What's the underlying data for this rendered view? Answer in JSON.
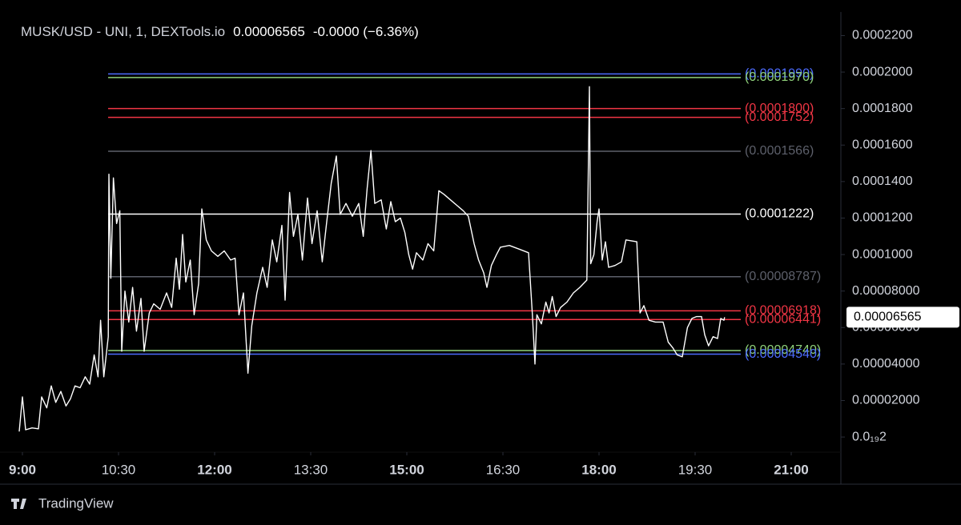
{
  "chart_data": {
    "type": "line",
    "title": "MUSK/USD - UNI, 1, DEXTools.io",
    "last_price": {
      "value": 6.565e-05,
      "label": "0.00006565"
    },
    "change_label": "-0.0000 (−6.36%)",
    "source": "TradingView",
    "xlim": [
      8.65,
      21.775
    ],
    "ylim": [
      -8.3e-06,
      0.0002395
    ],
    "xticks": [
      {
        "value": 9,
        "label": "9:00"
      },
      {
        "value": 10.5,
        "label": "10:30"
      },
      {
        "value": 12,
        "label": "12:00"
      },
      {
        "value": 13.5,
        "label": "13:30"
      },
      {
        "value": 15,
        "label": "15:00"
      },
      {
        "value": 16.5,
        "label": "16:30"
      },
      {
        "value": 18,
        "label": "18:00"
      },
      {
        "value": 19.5,
        "label": "19:30"
      },
      {
        "value": 21,
        "label": "21:00"
      }
    ],
    "yticks": [
      {
        "value": 2e-20,
        "label": "0.0₁₉2"
      },
      {
        "value": 2e-05,
        "label": "0.00002000"
      },
      {
        "value": 4e-05,
        "label": "0.00004000"
      },
      {
        "value": 6e-05,
        "label": "0.00006000"
      },
      {
        "value": 8e-05,
        "label": "0.00008000"
      },
      {
        "value": 0.0001,
        "label": "0.0001000"
      },
      {
        "value": 0.00012,
        "label": "0.0001200"
      },
      {
        "value": 0.00014,
        "label": "0.0001400"
      },
      {
        "value": 0.00016,
        "label": "0.0001600"
      },
      {
        "value": 0.00018,
        "label": "0.0001800"
      },
      {
        "value": 0.0002,
        "label": "0.0002000"
      },
      {
        "value": 0.00022,
        "label": "0.0002200"
      }
    ],
    "levels": [
      {
        "value": 0.000199,
        "label": "(0.0001990)",
        "color": "#4c6bff"
      },
      {
        "value": 0.000197,
        "label": "(0.0001970)",
        "color": "#8fd17a"
      },
      {
        "value": 0.00018,
        "label": "(0.0001800)",
        "color": "#f23645"
      },
      {
        "value": 0.0001752,
        "label": "(0.0001752)",
        "color": "#f23645"
      },
      {
        "value": 0.0001566,
        "label": "(0.0001566)",
        "color": "#5d606b"
      },
      {
        "value": 0.0001222,
        "label": "(0.0001222)",
        "color": "#ffffff"
      },
      {
        "value": 8.787e-05,
        "label": "(0.00008787)",
        "color": "#5d606b"
      },
      {
        "value": 6.918e-05,
        "label": "(0.00006918)",
        "color": "#f23645"
      },
      {
        "value": 6.441e-05,
        "label": "(0.00006441)",
        "color": "#f23645"
      },
      {
        "value": 4.74e-05,
        "label": "(0.00004740)",
        "color": "#8fd17a"
      },
      {
        "value": 4.54e-05,
        "label": "(0.00004540)",
        "color": "#4c6bff"
      }
    ],
    "series": [
      {
        "name": "MUSK/USD",
        "color": "#ffffff",
        "x": [
          8.95,
          9.0,
          9.05,
          9.15,
          9.25,
          9.3,
          9.38,
          9.45,
          9.52,
          9.6,
          9.68,
          9.75,
          9.82,
          9.9,
          9.98,
          10.05,
          10.12,
          10.18,
          10.22,
          10.27,
          10.34,
          10.35,
          10.38,
          10.42,
          10.47,
          10.52,
          10.55,
          10.6,
          10.66,
          10.72,
          10.78,
          10.85,
          10.9,
          10.98,
          11.05,
          11.15,
          11.25,
          11.33,
          11.4,
          11.45,
          11.5,
          11.55,
          11.62,
          11.68,
          11.75,
          11.8,
          11.87,
          11.95,
          12.05,
          12.15,
          12.25,
          12.32,
          12.38,
          12.45,
          12.52,
          12.58,
          12.66,
          12.75,
          12.82,
          12.9,
          12.97,
          13.05,
          13.1,
          13.17,
          13.23,
          13.3,
          13.37,
          13.45,
          13.52,
          13.6,
          13.68,
          13.75,
          13.82,
          13.9,
          13.96,
          14.05,
          14.15,
          14.25,
          14.32,
          14.38,
          14.44,
          14.5,
          14.6,
          14.68,
          14.75,
          14.82,
          14.9,
          14.97,
          15.03,
          15.09,
          15.15,
          15.25,
          15.33,
          15.42,
          15.5,
          15.58,
          15.68,
          15.78,
          15.88,
          15.96,
          16.05,
          16.12,
          16.2,
          16.25,
          16.32,
          16.4,
          16.46,
          16.6,
          16.75,
          16.9,
          16.96,
          17.0,
          17.03,
          17.1,
          17.17,
          17.22,
          17.27,
          17.33,
          17.4,
          17.5,
          17.6,
          17.7,
          17.81,
          17.85,
          17.87,
          17.92,
          17.97,
          18.0,
          18.05,
          18.1,
          18.15,
          18.25,
          18.35,
          18.42,
          18.59,
          18.64,
          18.7,
          18.78,
          18.88,
          19.0,
          19.08,
          19.15,
          19.22,
          19.3,
          19.38,
          19.45,
          19.52,
          19.6,
          19.65,
          19.71,
          19.78,
          19.85,
          19.9,
          19.95,
          19.96
        ],
        "values": [
          3e-06,
          2.2e-05,
          4e-06,
          5e-06,
          4.5e-06,
          2.2e-05,
          1.6e-05,
          2.8e-05,
          1.9e-05,
          2.5e-05,
          1.7e-05,
          2.1e-05,
          2.8e-05,
          2.7e-05,
          3.3e-05,
          2.9e-05,
          4.5e-05,
          3.3e-05,
          6.4e-05,
          3.3e-05,
          5.5e-05,
          0.000144,
          8.7e-05,
          0.000142,
          0.000117,
          0.000124,
          4.7e-05,
          8e-05,
          6.3e-05,
          8.2e-05,
          5.8e-05,
          7.6e-05,
          4.7e-05,
          6.8e-05,
          7.3e-05,
          7e-05,
          7.9e-05,
          7.1e-05,
          9.8e-05,
          8.1e-05,
          0.000111,
          8.5e-05,
          9.7e-05,
          6.7e-05,
          8.4e-05,
          0.000125,
          0.000108,
          0.000102,
          9.9e-05,
          0.000102,
          9.7e-05,
          9.8e-05,
          6.7e-05,
          7.9e-05,
          3.5e-05,
          6.1e-05,
          7.9e-05,
          9.3e-05,
          8.2e-05,
          0.000108,
          9.6e-05,
          0.000116,
          7.5e-05,
          0.000134,
          0.00011,
          0.000122,
          9.7e-05,
          0.000131,
          0.000106,
          0.000124,
          9.6e-05,
          0.000118,
          0.000139,
          0.000154,
          0.000122,
          0.000128,
          0.000121,
          0.000128,
          0.00011,
          0.000136,
          0.000157,
          0.000128,
          0.00013,
          0.000114,
          0.000129,
          0.000118,
          0.00012,
          0.000112,
          0.0001,
          9.2e-05,
          0.000101,
          9.7e-05,
          0.000106,
          0.000102,
          0.000135,
          0.000133,
          0.00013,
          0.000127,
          0.000124,
          0.000121,
          0.000106,
          9.7e-05,
          9e-05,
          8.2e-05,
          9.4e-05,
          0.0001,
          0.000104,
          0.000105,
          0.000103,
          0.000101,
          6.7e-05,
          4e-05,
          6.7e-05,
          6.2e-05,
          7.4e-05,
          6.8e-05,
          7.7e-05,
          6.6e-05,
          7.1e-05,
          7.4e-05,
          7.9e-05,
          8.2e-05,
          8.6e-05,
          0.000192,
          9.5e-05,
          0.0001,
          0.000118,
          0.000125,
          9.7e-05,
          0.000107,
          9.3e-05,
          9.4e-05,
          9.6e-05,
          0.000108,
          0.000107,
          6.8e-05,
          7.2e-05,
          6.4e-05,
          6.3e-05,
          6.3e-05,
          5.2e-05,
          4.9e-05,
          4.5e-05,
          4.4e-05,
          6e-05,
          6.5e-05,
          6.6e-05,
          6.6e-05,
          5.6e-05,
          5e-05,
          5.5e-05,
          5.4e-05,
          6.5e-05,
          6.4e-05,
          6.565e-05
        ]
      }
    ]
  }
}
